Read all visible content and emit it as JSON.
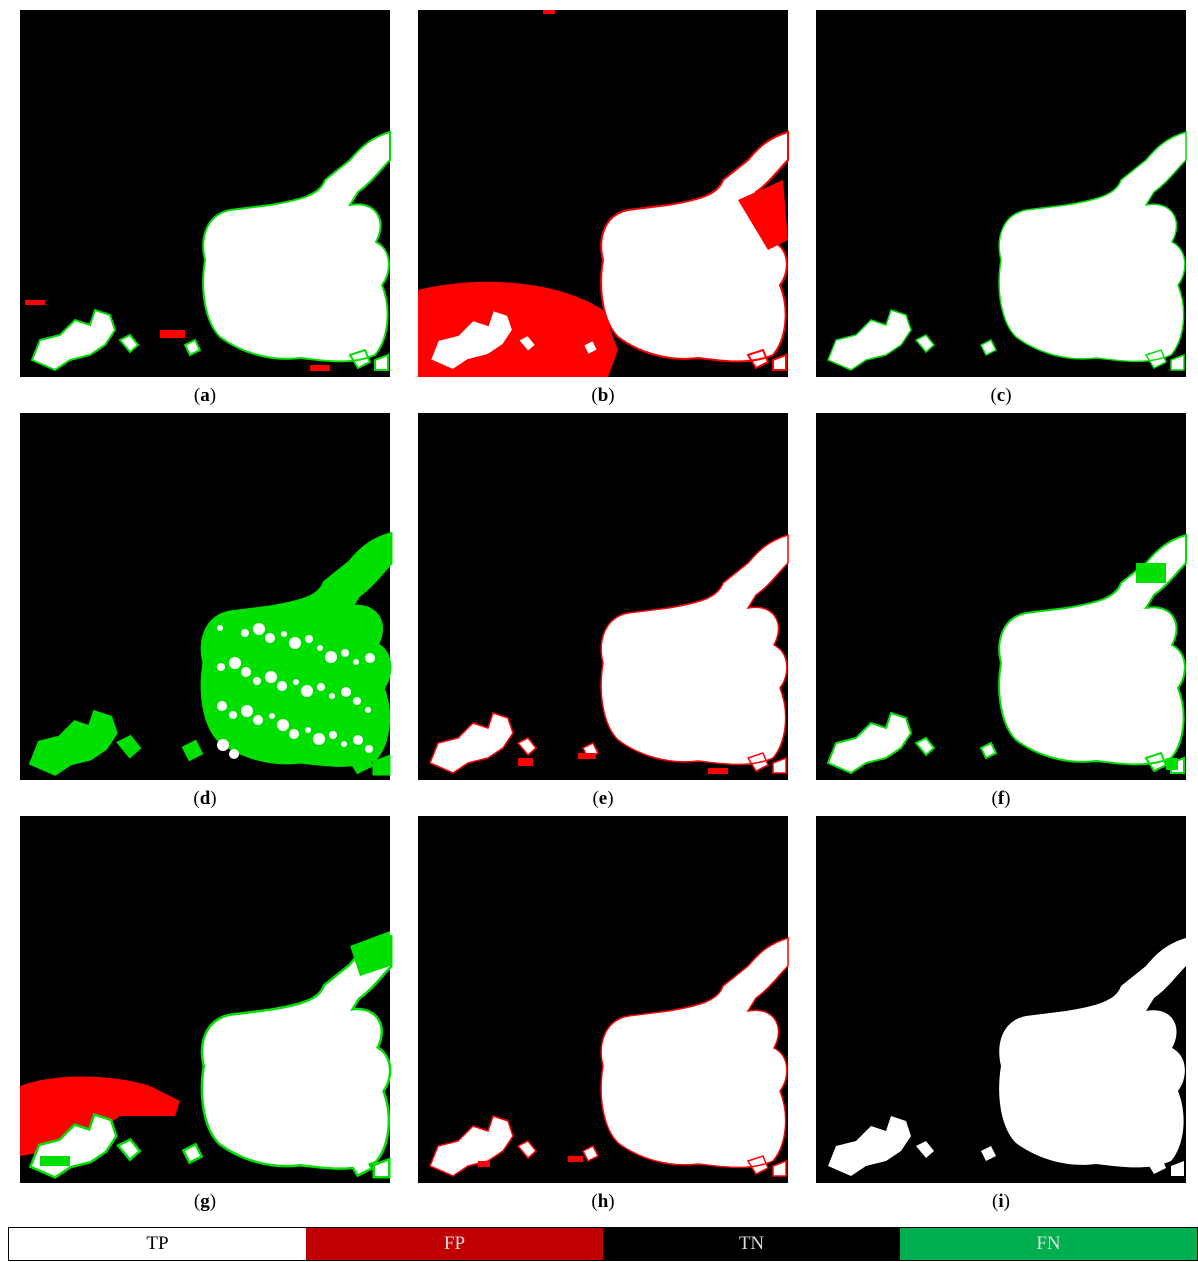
{
  "figure": {
    "label_open": "(",
    "label_close": ")",
    "panels": [
      "a",
      "b",
      "c",
      "d",
      "e",
      "f",
      "g",
      "h",
      "i"
    ],
    "legend": [
      "TP",
      "FP",
      "TN",
      "FN"
    ]
  }
}
